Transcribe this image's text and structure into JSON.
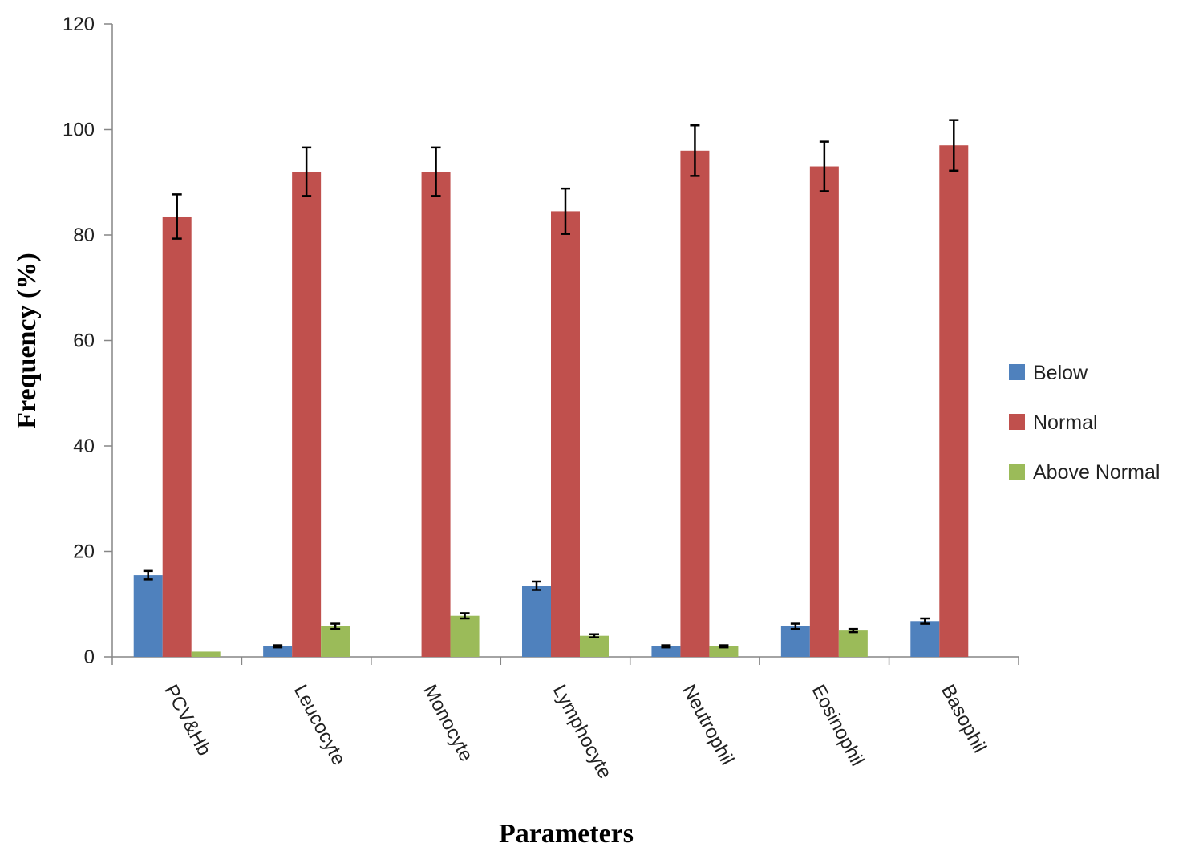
{
  "chart_data": {
    "type": "bar",
    "xlabel": "Parameters",
    "ylabel": "Frequency (%)",
    "ylim": [
      0,
      120
    ],
    "yticks": [
      0,
      20,
      40,
      60,
      80,
      100,
      120
    ],
    "grid": false,
    "legend_position": "right",
    "categories": [
      "PCV&Hb",
      "Leucocyte",
      "Monocyte",
      "Lymphocyte",
      "Neutrophil",
      "Eosinophil",
      "Basophil"
    ],
    "series": [
      {
        "name": "Below",
        "color": "#4f81bd",
        "values": [
          15.5,
          2,
          0,
          13.5,
          2,
          5.8,
          6.8
        ],
        "errors": [
          0.8,
          0.2,
          0,
          0.8,
          0.2,
          0.5,
          0.5
        ]
      },
      {
        "name": "Normal",
        "color": "#c0504d",
        "values": [
          83.5,
          92,
          92,
          84.5,
          96,
          93,
          97
        ],
        "errors": [
          4.2,
          4.6,
          4.6,
          4.3,
          4.8,
          4.7,
          4.8
        ]
      },
      {
        "name": "Above Normal",
        "color": "#9bbb59",
        "values": [
          1,
          5.8,
          7.8,
          4,
          2,
          5,
          0
        ],
        "errors": [
          0,
          0.5,
          0.5,
          0.3,
          0.2,
          0.3,
          0
        ]
      }
    ]
  }
}
